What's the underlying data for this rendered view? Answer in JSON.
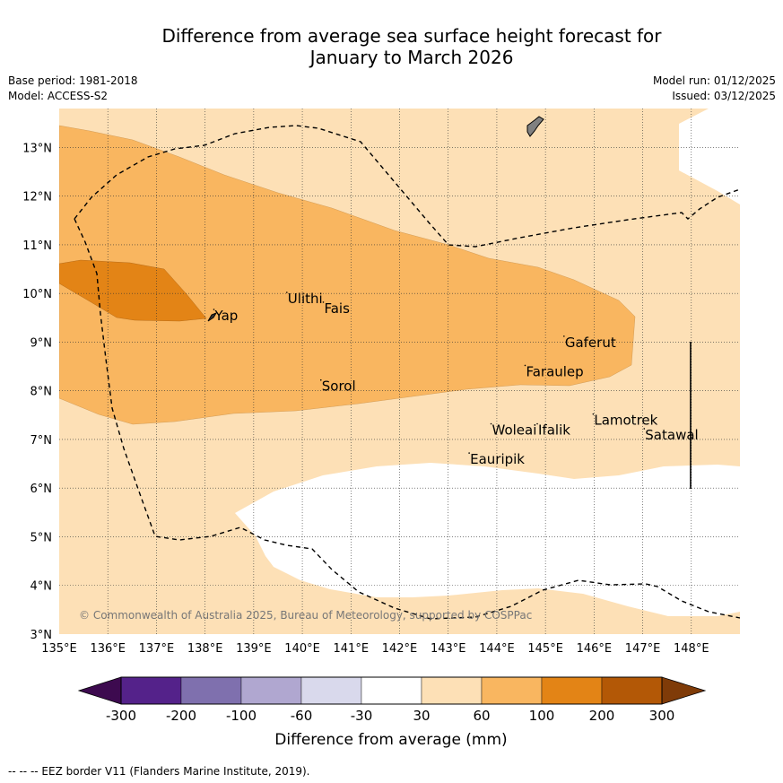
{
  "title": {
    "line1": "Difference from average sea surface height forecast for",
    "line2": "January to March 2026"
  },
  "meta": {
    "base_period": "Base period: 1981-2018",
    "model": "Model: ACCESS-S2",
    "model_run": "Model run: 01/12/2025",
    "issued": "Issued: 03/12/2025"
  },
  "map": {
    "lon_ticks": [
      "135°E",
      "136°E",
      "137°E",
      "138°E",
      "139°E",
      "140°E",
      "141°E",
      "142°E",
      "143°E",
      "144°E",
      "145°E",
      "146°E",
      "147°E",
      "148°E"
    ],
    "lat_ticks": [
      "3°N",
      "4°N",
      "5°N",
      "6°N",
      "7°N",
      "8°N",
      "9°N",
      "10°N",
      "11°N",
      "12°N",
      "13°N"
    ],
    "places": [
      {
        "name": "Yap",
        "lon": 138.2,
        "lat": 9.45
      },
      {
        "name": "Ulithi",
        "lon": 139.7,
        "lat": 9.8
      },
      {
        "name": "Fais",
        "lon": 140.45,
        "lat": 9.6
      },
      {
        "name": "Gaferut",
        "lon": 145.4,
        "lat": 8.9
      },
      {
        "name": "Faraulep",
        "lon": 144.6,
        "lat": 8.3
      },
      {
        "name": "Sorol",
        "lon": 140.4,
        "lat": 8.0
      },
      {
        "name": "Woleai",
        "lon": 143.9,
        "lat": 7.1
      },
      {
        "name": "Ifalik",
        "lon": 144.85,
        "lat": 7.1
      },
      {
        "name": "Lamotrek",
        "lon": 146.0,
        "lat": 7.3
      },
      {
        "name": "Satawal",
        "lon": 147.05,
        "lat": 7.0
      },
      {
        "name": "Eauripik",
        "lon": 143.45,
        "lat": 6.5
      }
    ],
    "copyright": "© Commonwealth of Australia 2025, Bureau of Meteorology, supported by COSPPac"
  },
  "colorbar": {
    "label": "Difference from average (mm)",
    "ticks": [
      "-300",
      "-200",
      "-100",
      "-60",
      "-30",
      "30",
      "60",
      "100",
      "200",
      "300"
    ],
    "colors": [
      "#3d0a4f",
      "#54228a",
      "#7f70ae",
      "#b0a7d0",
      "#d9d9ec",
      "#ffffff",
      "#fde0b6",
      "#f9b660",
      "#e38416",
      "#b35806",
      "#7f3b08"
    ]
  },
  "legend": {
    "eez": "--  --  -- EEZ border V11 (Flanders Marine Institute, 2019)."
  },
  "colors": {
    "land": "#808080",
    "grid": "#333333"
  }
}
